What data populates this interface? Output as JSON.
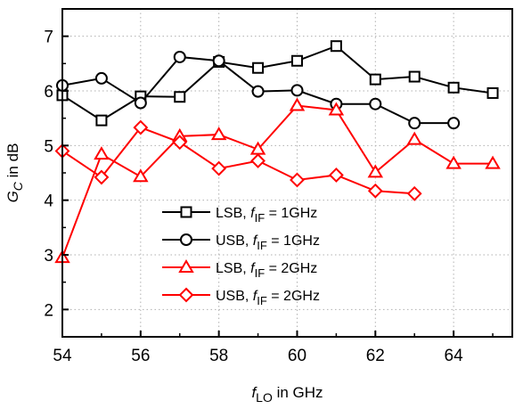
{
  "chart_data": {
    "type": "line",
    "xlabel": {
      "main": "f",
      "sub": "LO",
      "rest": " in GHz"
    },
    "ylabel": {
      "main": "G",
      "sub": "C",
      "rest": " in dB"
    },
    "xlim": [
      54,
      65.5
    ],
    "ylim": [
      1.5,
      7.5
    ],
    "xticks": [
      54,
      56,
      58,
      60,
      62,
      64
    ],
    "yticks": [
      2,
      3,
      4,
      5,
      6,
      7
    ],
    "grid": true,
    "legend_position": "center-left",
    "series": [
      {
        "label": {
          "prefix": "LSB, ",
          "main": "f",
          "sub": "IF",
          "rest": " = 1GHz"
        },
        "color": "#000000",
        "marker": "square",
        "x": [
          54,
          55,
          56,
          57,
          58,
          59,
          60,
          61,
          62,
          63,
          64,
          65
        ],
        "y": [
          5.92,
          5.46,
          5.9,
          5.89,
          6.53,
          6.42,
          6.55,
          6.82,
          6.21,
          6.26,
          6.06,
          5.96
        ]
      },
      {
        "label": {
          "prefix": "USB, ",
          "main": "f",
          "sub": "IF",
          "rest": " = 1GHz"
        },
        "color": "#000000",
        "marker": "circle",
        "x": [
          54,
          55,
          56,
          57,
          58,
          59,
          60,
          61,
          62,
          63,
          64
        ],
        "y": [
          6.1,
          6.23,
          5.78,
          6.62,
          6.55,
          5.99,
          6.01,
          5.76,
          5.76,
          5.41,
          5.41
        ]
      },
      {
        "label": {
          "prefix": "LSB, ",
          "main": "f",
          "sub": "IF",
          "rest": " = 2GHz"
        },
        "color": "#ff0000",
        "marker": "triangle",
        "x": [
          54,
          55,
          56,
          57,
          58,
          59,
          60,
          61,
          62,
          63,
          64,
          65
        ],
        "y": [
          2.95,
          4.84,
          4.43,
          5.17,
          5.2,
          4.93,
          5.73,
          5.65,
          4.51,
          5.11,
          4.67,
          4.67
        ]
      },
      {
        "label": {
          "prefix": "USB, ",
          "main": "f",
          "sub": "IF",
          "rest": " = 2GHz"
        },
        "color": "#ff0000",
        "marker": "diamond",
        "x": [
          54,
          55,
          56,
          57,
          58,
          59,
          60,
          61,
          62,
          63
        ],
        "y": [
          4.9,
          4.42,
          5.33,
          5.06,
          4.58,
          4.72,
          4.37,
          4.46,
          4.17,
          4.12
        ]
      }
    ]
  }
}
